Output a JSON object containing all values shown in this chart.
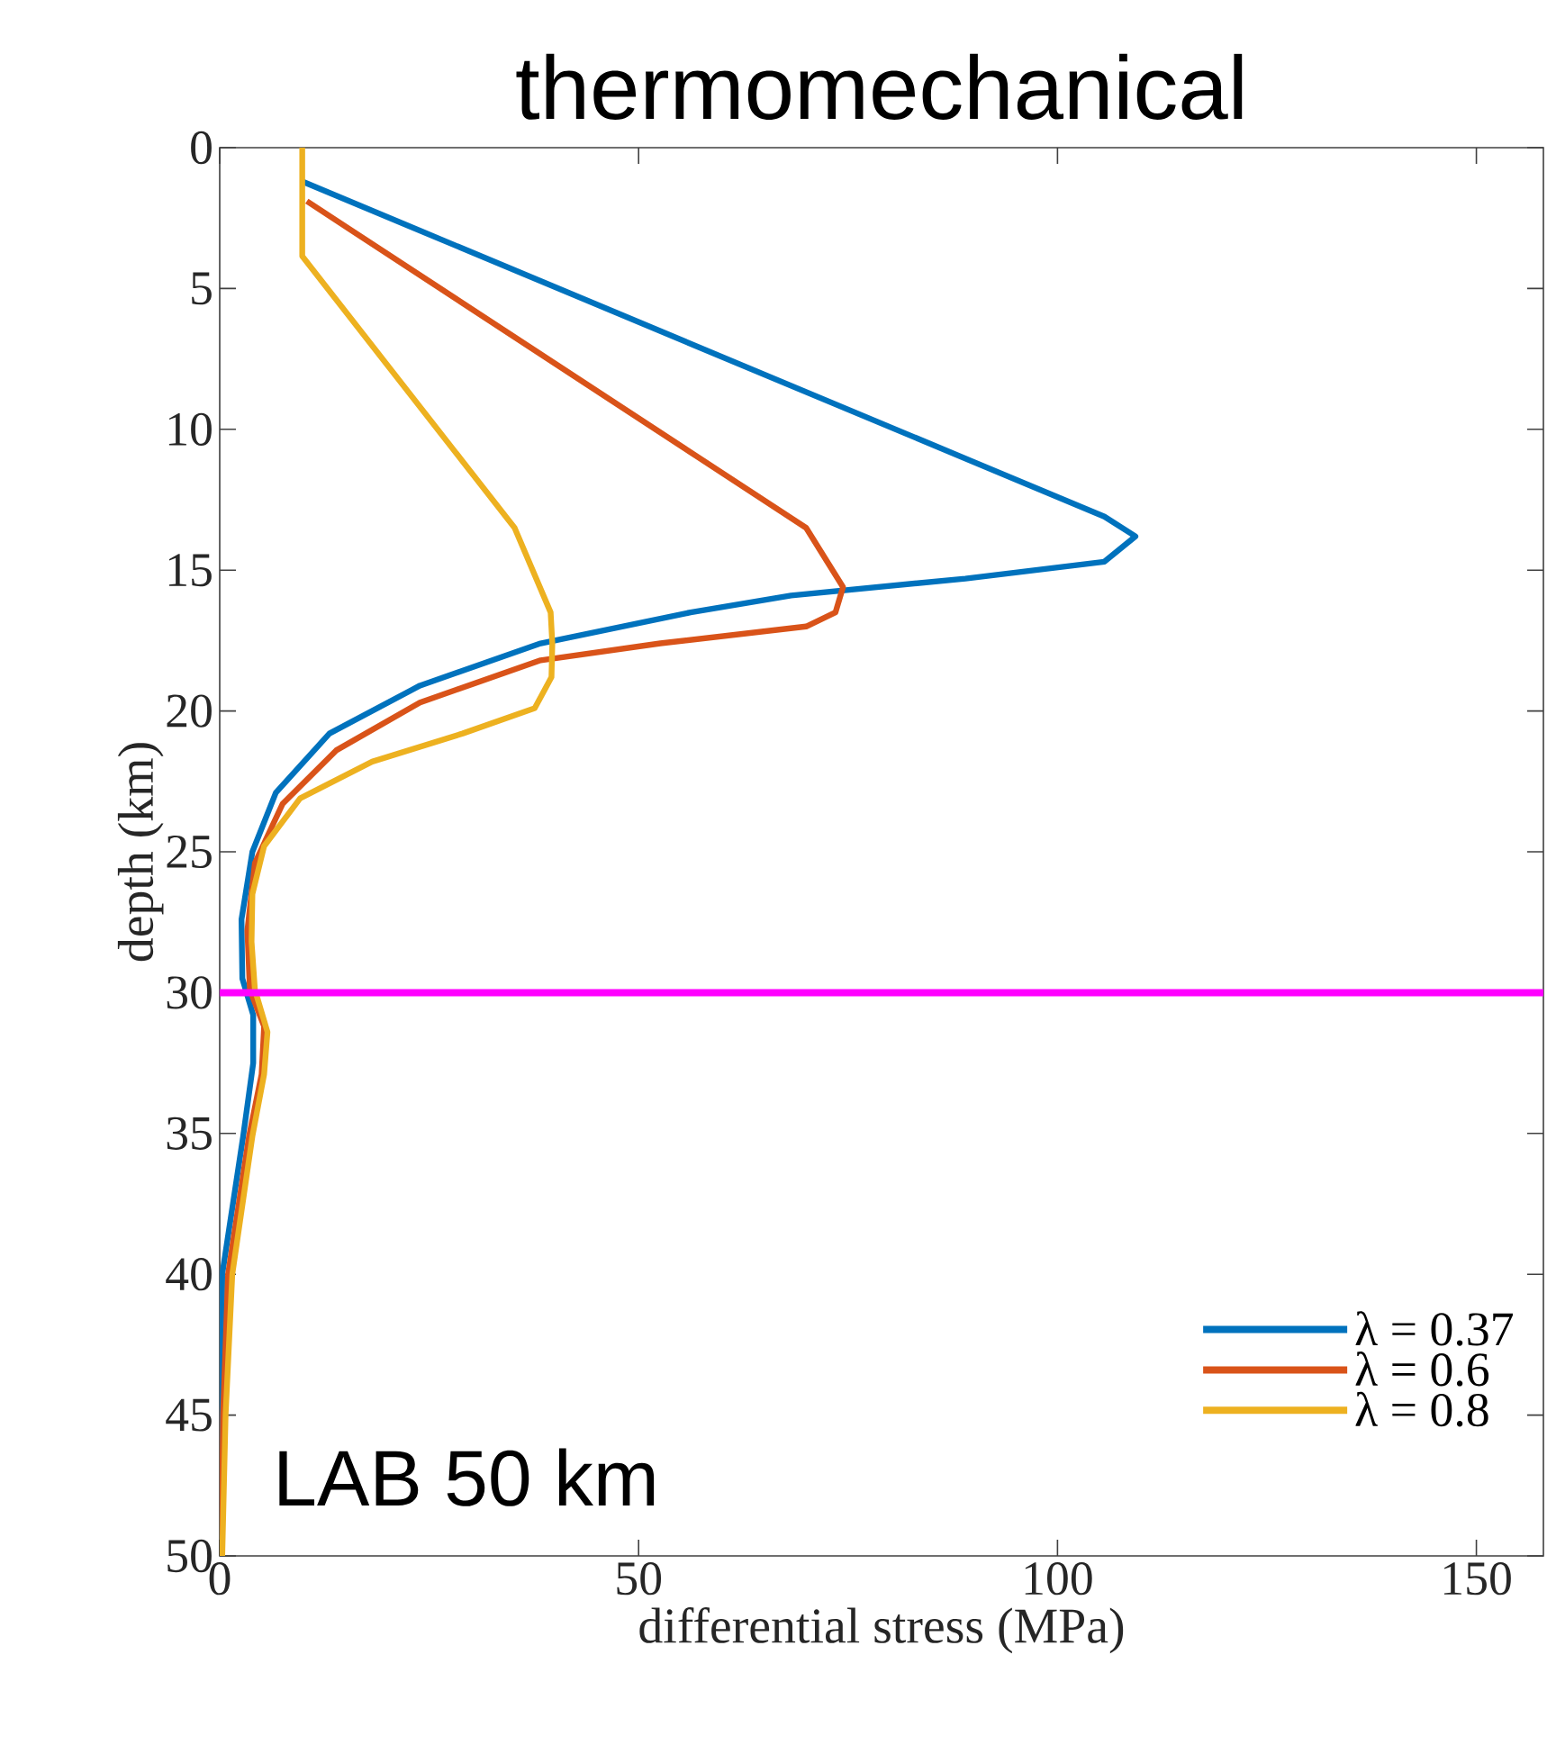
{
  "chart_data": {
    "type": "line",
    "title": "thermomechanical",
    "xlabel": "differential stress (MPa)",
    "ylabel": "depth (km)",
    "xlim": [
      0,
      158
    ],
    "ylim": [
      50,
      0
    ],
    "xticks": [
      0,
      50,
      100,
      150
    ],
    "yticks": [
      0,
      5,
      10,
      15,
      20,
      25,
      30,
      35,
      40,
      45,
      50
    ],
    "grid": false,
    "legend": "bottom right",
    "line_style": "solid",
    "annotations": [
      "LAB 50 km"
    ],
    "ref_lines": [
      {
        "axis": "y",
        "value": 30,
        "color": "#ff00ff"
      }
    ],
    "series": [
      {
        "name": "λ = 0.37",
        "color": "#0072bd",
        "x": [
          9.85,
          105.6,
          109.3,
          105.6,
          89,
          68.2,
          56.2,
          38.3,
          23.9,
          13.1,
          6.7,
          3.9,
          2.6,
          2.7,
          4.0,
          4.0,
          2.8,
          0.3,
          0.1
        ],
        "values": [
          1.2,
          13.1,
          13.8,
          14.7,
          15.3,
          15.9,
          16.5,
          17.6,
          19.1,
          20.8,
          22.9,
          25.0,
          27.4,
          29.5,
          30.8,
          32.5,
          35.1,
          40,
          50
        ]
      },
      {
        "name": "λ = 0.6",
        "color": "#d95319",
        "x": [
          10.4,
          70,
          74.4,
          73.5,
          70,
          52.6,
          38.3,
          23.9,
          13.9,
          7.5,
          4.2,
          3.3,
          3.6,
          5.3,
          5.0,
          3.5,
          1.0,
          0.4,
          0.2
        ],
        "values": [
          1.9,
          13.5,
          15.6,
          16.5,
          17.0,
          17.6,
          18.2,
          19.7,
          21.4,
          23.3,
          25.4,
          27.8,
          29.9,
          31.2,
          32.9,
          35.1,
          40,
          45,
          50
        ]
      },
      {
        "name": "λ = 0.8",
        "color": "#edb120",
        "x": [
          9.85,
          9.85,
          35.2,
          39.5,
          39.7,
          39.6,
          37.6,
          29,
          18.2,
          9.6,
          5.3,
          3.9,
          3.8,
          4.2,
          5.7,
          5.3,
          3.9,
          1.5,
          0.7,
          0.3
        ],
        "values": [
          0,
          3.85,
          13.5,
          16.5,
          17.6,
          18.8,
          19.9,
          20.8,
          21.8,
          23.1,
          24.8,
          26.5,
          28.2,
          29.9,
          31.4,
          32.9,
          35.1,
          40,
          45,
          50
        ]
      }
    ]
  }
}
